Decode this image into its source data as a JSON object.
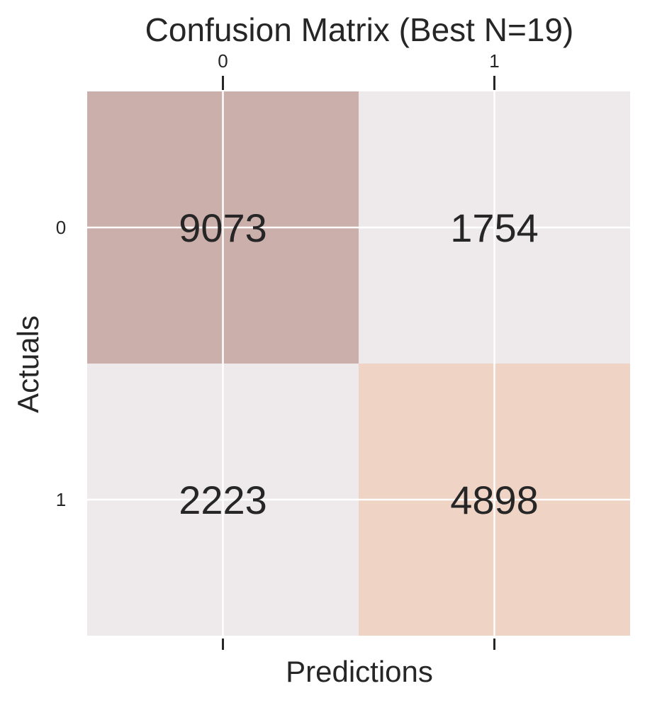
{
  "chart_data": {
    "type": "heatmap",
    "title": "Confusion Matrix (Best N=19)",
    "xlabel": "Predictions",
    "ylabel": "Actuals",
    "x_categories": [
      "0",
      "1"
    ],
    "y_categories": [
      "0",
      "1"
    ],
    "values": [
      [
        9073,
        1754
      ],
      [
        2223,
        4898
      ]
    ],
    "cell_colors": [
      [
        "#cbafaa",
        "#eeeaeb"
      ],
      [
        "#eeeaeb",
        "#efd3c5"
      ]
    ],
    "grid": true,
    "x_ticks_position": "top-and-bottom",
    "legend": "none"
  }
}
